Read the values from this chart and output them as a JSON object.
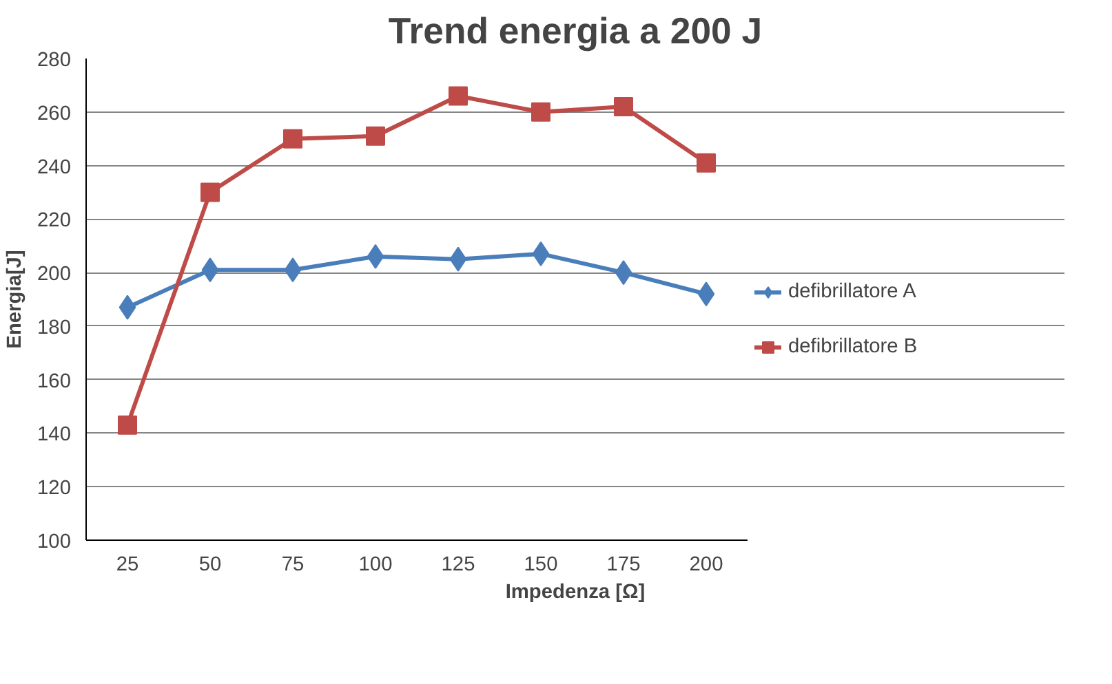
{
  "chart_data": {
    "type": "line",
    "title": "Trend energia a 200 J",
    "xlabel": "Impedenza [Ω]",
    "ylabel": "Energia[J]",
    "categories": [
      "25",
      "50",
      "75",
      "100",
      "125",
      "150",
      "175",
      "200"
    ],
    "series": [
      {
        "name": "defibrillatore A",
        "color": "#4a7ebb",
        "marker": "diamond",
        "values": [
          187,
          201,
          201,
          206,
          205,
          207,
          200,
          192
        ]
      },
      {
        "name": "defibrillatore B",
        "color": "#be4b48",
        "marker": "square",
        "values": [
          143,
          230,
          250,
          251,
          266,
          260,
          262,
          241
        ]
      }
    ],
    "ylim": [
      100,
      280
    ],
    "yticks": [
      100,
      120,
      140,
      160,
      180,
      200,
      220,
      240,
      260,
      280
    ],
    "grid": "y",
    "legend": "right"
  }
}
